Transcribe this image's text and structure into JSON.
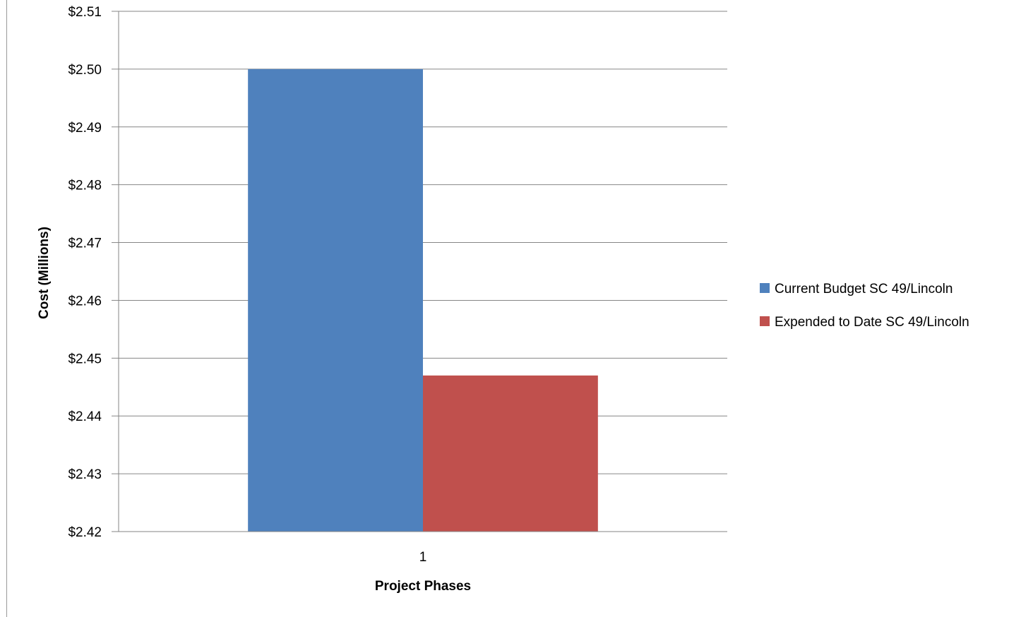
{
  "chart_data": {
    "type": "bar",
    "title": "",
    "categories": [
      "1"
    ],
    "series": [
      {
        "name": "Current Budget SC 49/Lincoln",
        "values": [
          2.5
        ],
        "color": "#4F81BD"
      },
      {
        "name": "Expended to Date SC 49/Lincoln",
        "values": [
          2.447
        ],
        "color": "#C0504D"
      }
    ],
    "xlabel": "Project Phases",
    "ylabel": "Cost (Millions)",
    "ylim": [
      2.42,
      2.51
    ],
    "yticks": [
      "$2.42",
      "$2.43",
      "$2.44",
      "$2.45",
      "$2.46",
      "$2.47",
      "$2.48",
      "$2.49",
      "$2.50",
      "$2.51"
    ],
    "grid": true,
    "legend_position": "right"
  }
}
